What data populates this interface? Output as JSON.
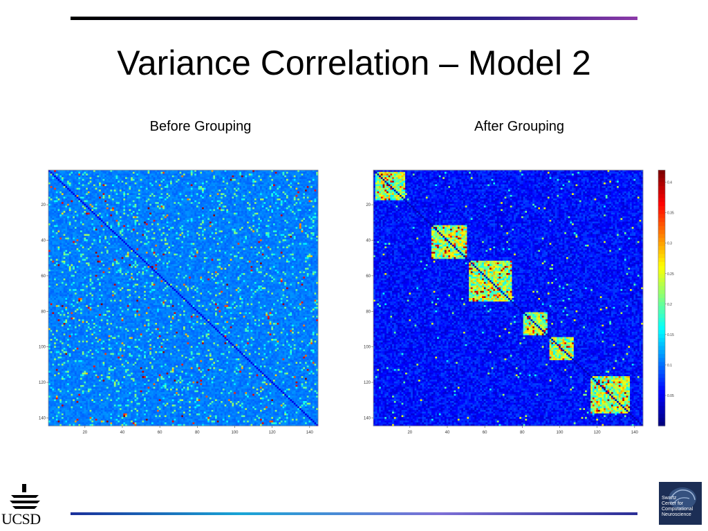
{
  "slide": {
    "title": "Variance Correlation – Model 2",
    "logo_left_text": "UCSD",
    "logo_right_lines": [
      "Swartz",
      "Center for",
      "Computational",
      "Neuroscience"
    ]
  },
  "chart_data": [
    {
      "type": "heatmap",
      "title": "Before Grouping",
      "size": 144,
      "x_ticks": [
        "20",
        "40",
        "60",
        "80",
        "100",
        "120",
        "140"
      ],
      "y_ticks": [
        "20",
        "40",
        "60",
        "80",
        "100",
        "120",
        "140"
      ],
      "colormap": "jet",
      "structure": "unstructured, sparse scattered high values",
      "grid": false
    },
    {
      "type": "heatmap",
      "title": "After Grouping",
      "size": 144,
      "x_ticks": [
        "20",
        "40",
        "60",
        "80",
        "100",
        "120",
        "140"
      ],
      "y_ticks": [
        "20",
        "40",
        "60",
        "80",
        "100",
        "120",
        "140"
      ],
      "colormap": "jet",
      "colorbar_ticks": [
        "0.4",
        "0.35",
        "0.3",
        "0.25",
        "0.2",
        "0.15",
        "0.1",
        "0.05"
      ],
      "colorbar_range": [
        0,
        0.42
      ],
      "structure": "block-diagonal groups",
      "blocks": [
        [
          1,
          16
        ],
        [
          31,
          49
        ],
        [
          51,
          73
        ],
        [
          80,
          92
        ],
        [
          94,
          106
        ],
        [
          116,
          136
        ]
      ],
      "grid": false
    }
  ],
  "colors": {
    "top_rule_start": "#000000",
    "top_rule_end": "#8c3aa8",
    "bottom_rule_start": "#1b2f9a",
    "bottom_rule_mid": "#19a5d6",
    "heatmap_background": "#0a22c8"
  }
}
